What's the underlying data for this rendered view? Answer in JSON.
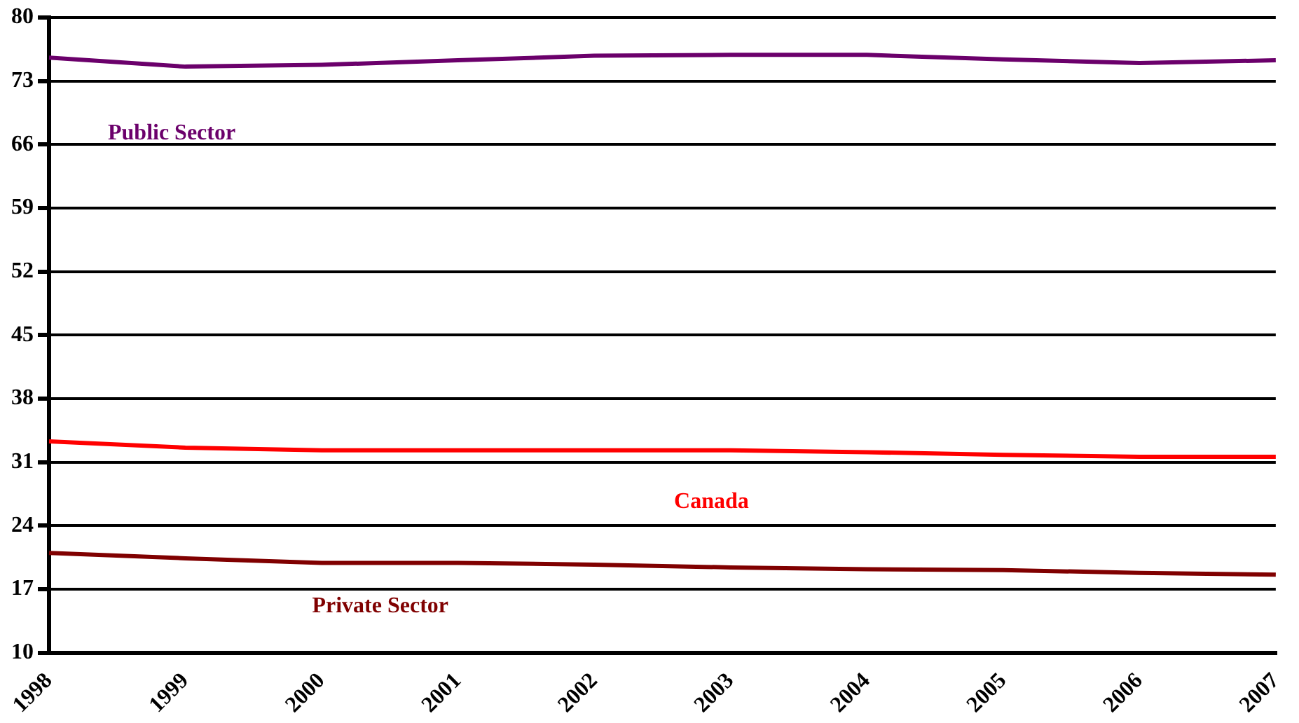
{
  "chart_data": {
    "type": "line",
    "categories": [
      "1998",
      "1999",
      "2000",
      "2001",
      "2002",
      "2003",
      "2004",
      "2005",
      "2006",
      "2007"
    ],
    "series": [
      {
        "name": "Public Sector",
        "color": "#6b006b",
        "values": [
          75.6,
          74.6,
          74.8,
          75.3,
          75.8,
          75.9,
          75.9,
          75.4,
          75.0,
          75.3
        ]
      },
      {
        "name": "Canada",
        "color": "#ff0000",
        "values": [
          33.3,
          32.6,
          32.3,
          32.3,
          32.3,
          32.3,
          32.1,
          31.8,
          31.6,
          31.6
        ]
      },
      {
        "name": "Private Sector",
        "color": "#800000",
        "values": [
          21.0,
          20.4,
          19.9,
          19.9,
          19.7,
          19.4,
          19.2,
          19.1,
          18.8,
          18.6
        ]
      }
    ],
    "ylim": [
      10,
      80
    ],
    "yticks": [
      10,
      17,
      24,
      31,
      38,
      45,
      52,
      59,
      66,
      73,
      80
    ],
    "grid": "y",
    "legend": false,
    "marker": "none",
    "line_style": "solid"
  }
}
